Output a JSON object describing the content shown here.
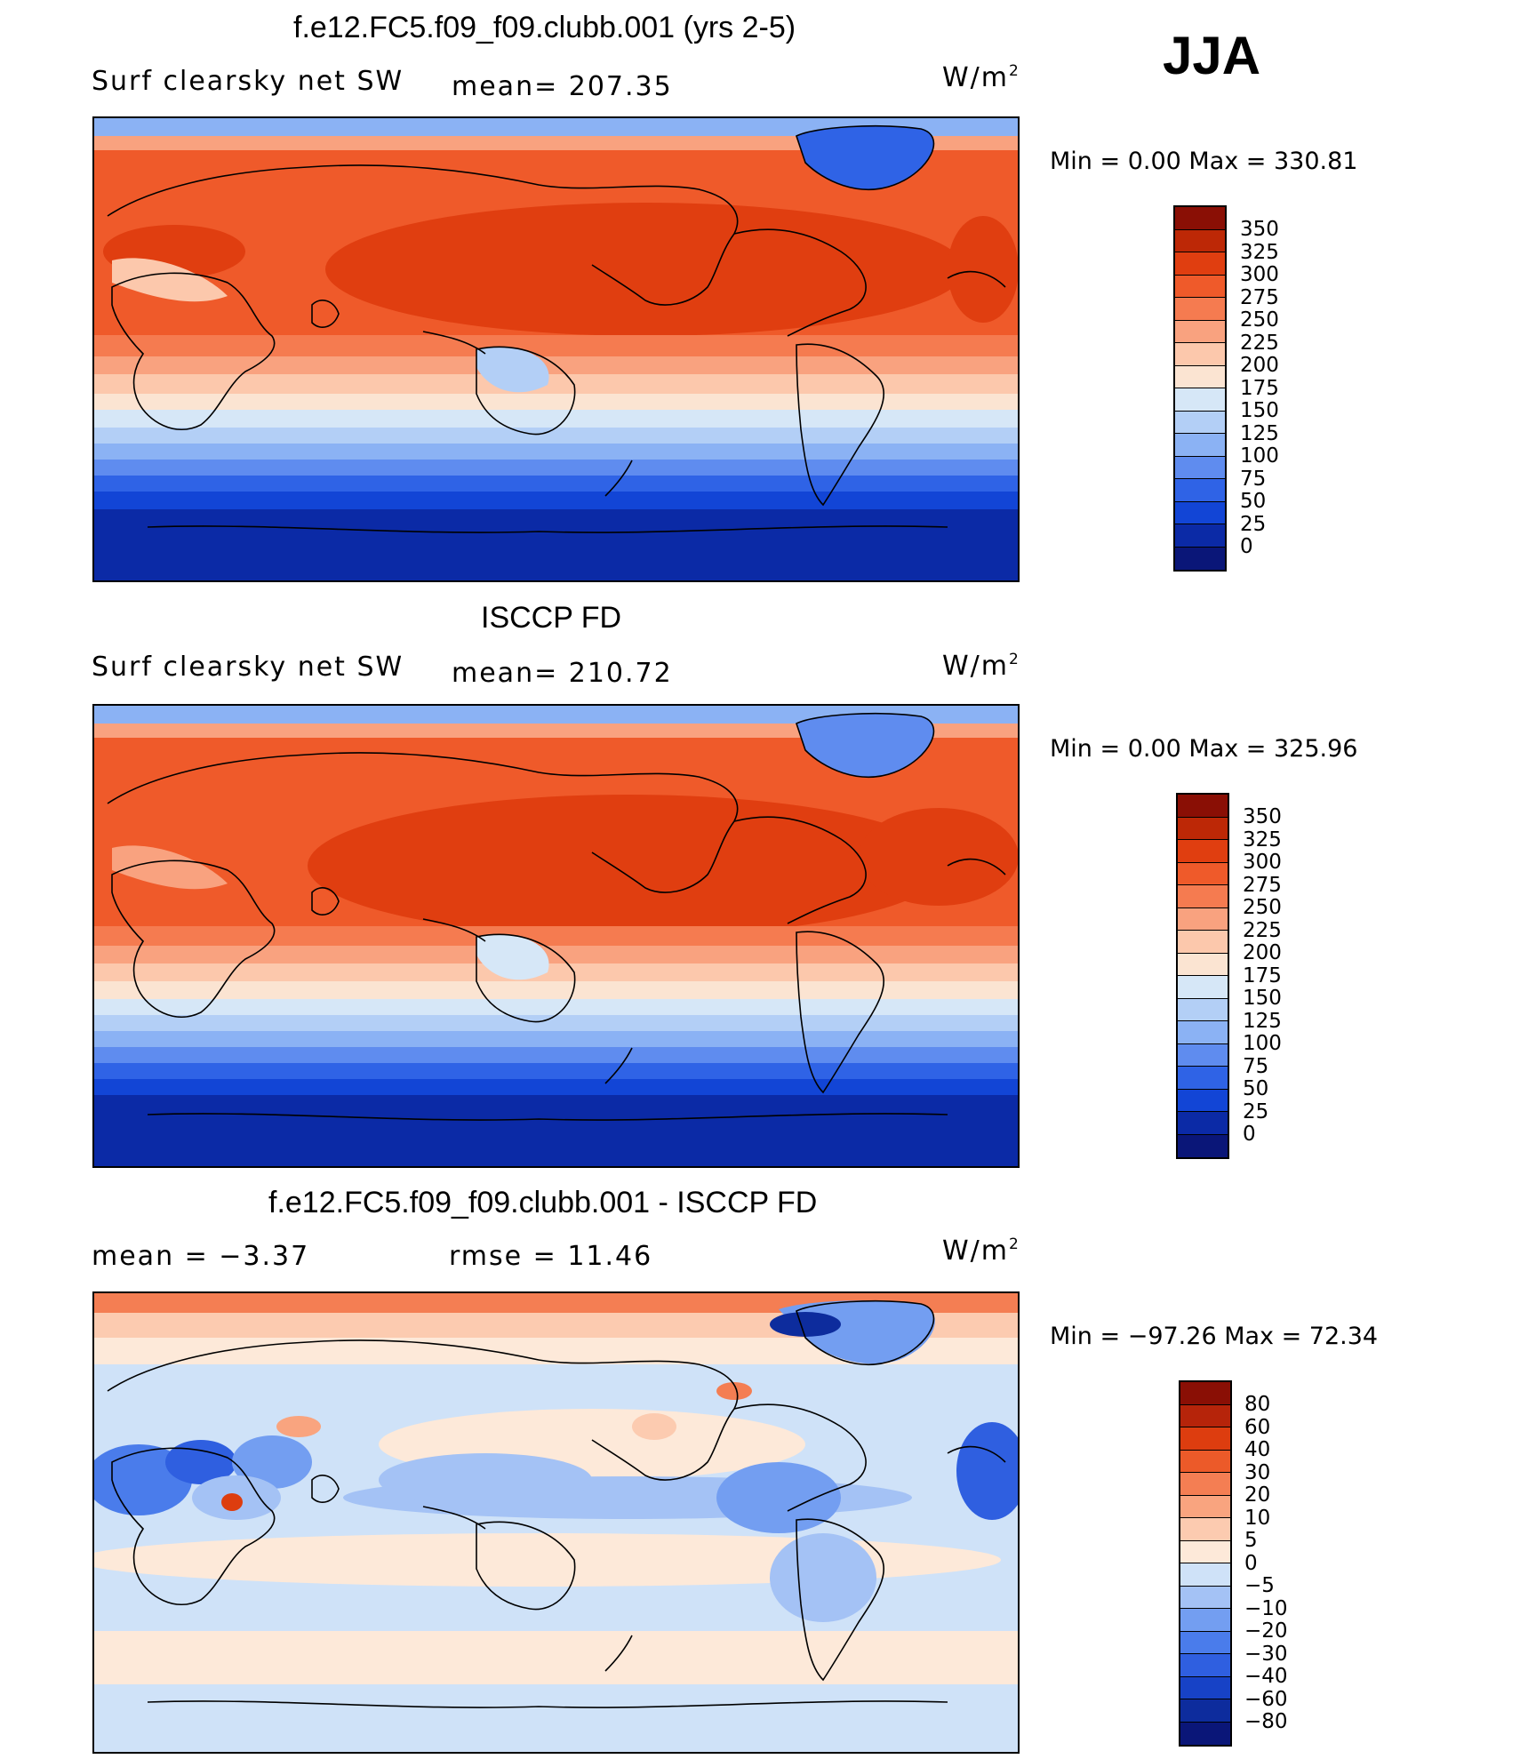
{
  "season": "JJA",
  "colors": {
    "ramp": [
      "#0a1678",
      "#0b2aa6",
      "#1245d6",
      "#2f63e6",
      "#5f8cef",
      "#8bb2f4",
      "#b3cff6",
      "#d6e7f7",
      "#fbe4d2",
      "#fcc8ac",
      "#f9a27f",
      "#f57b50",
      "#ef5a2a",
      "#e03e10",
      "#bd2806",
      "#8a0f05"
    ],
    "diff_ramp": [
      "#0a1678",
      "#0d2c9d",
      "#1742c6",
      "#2f5fe0",
      "#4a7ceb",
      "#739ef1",
      "#a4c2f5",
      "#cfe2f8",
      "#fde9d9",
      "#fccbb0",
      "#f9a47f",
      "#f47e53",
      "#ec5a29",
      "#dd3d0f",
      "#b6240a",
      "#8a0f05"
    ],
    "coast": "#000000"
  },
  "panels": [
    {
      "title": "f.e12.FC5.f09_f09.clubb.001 (yrs 2-5)",
      "left_label": "Surf clearsky net SW",
      "mid_label": "mean= 207.35",
      "units": "W/m",
      "units_exp": "2",
      "minmax": "Min =    0.00 Max = 330.81",
      "colorbar_labels": [
        "350",
        "325",
        "300",
        "275",
        "250",
        "225",
        "200",
        "175",
        "150",
        "125",
        "100",
        "75",
        "50",
        "25",
        "0"
      ]
    },
    {
      "title": "ISCCP FD",
      "left_label": "Surf clearsky net SW",
      "mid_label": "mean= 210.72",
      "units": "W/m",
      "units_exp": "2",
      "minmax": "Min =    0.00 Max = 325.96",
      "colorbar_labels": [
        "350",
        "325",
        "300",
        "275",
        "250",
        "225",
        "200",
        "175",
        "150",
        "125",
        "100",
        "75",
        "50",
        "25",
        "0"
      ]
    },
    {
      "title": "f.e12.FC5.f09_f09.clubb.001 - ISCCP FD",
      "left_label": "mean =   −3.37",
      "mid_label": "rmse =   11.46",
      "units": "W/m",
      "units_exp": "2",
      "minmax": "Min = −97.26 Max =  72.34",
      "colorbar_labels": [
        "80",
        "60",
        "40",
        "30",
        "20",
        "10",
        "5",
        "0",
        "−5",
        "−10",
        "−20",
        "−30",
        "−40",
        "−60",
        "−80"
      ]
    }
  ]
}
